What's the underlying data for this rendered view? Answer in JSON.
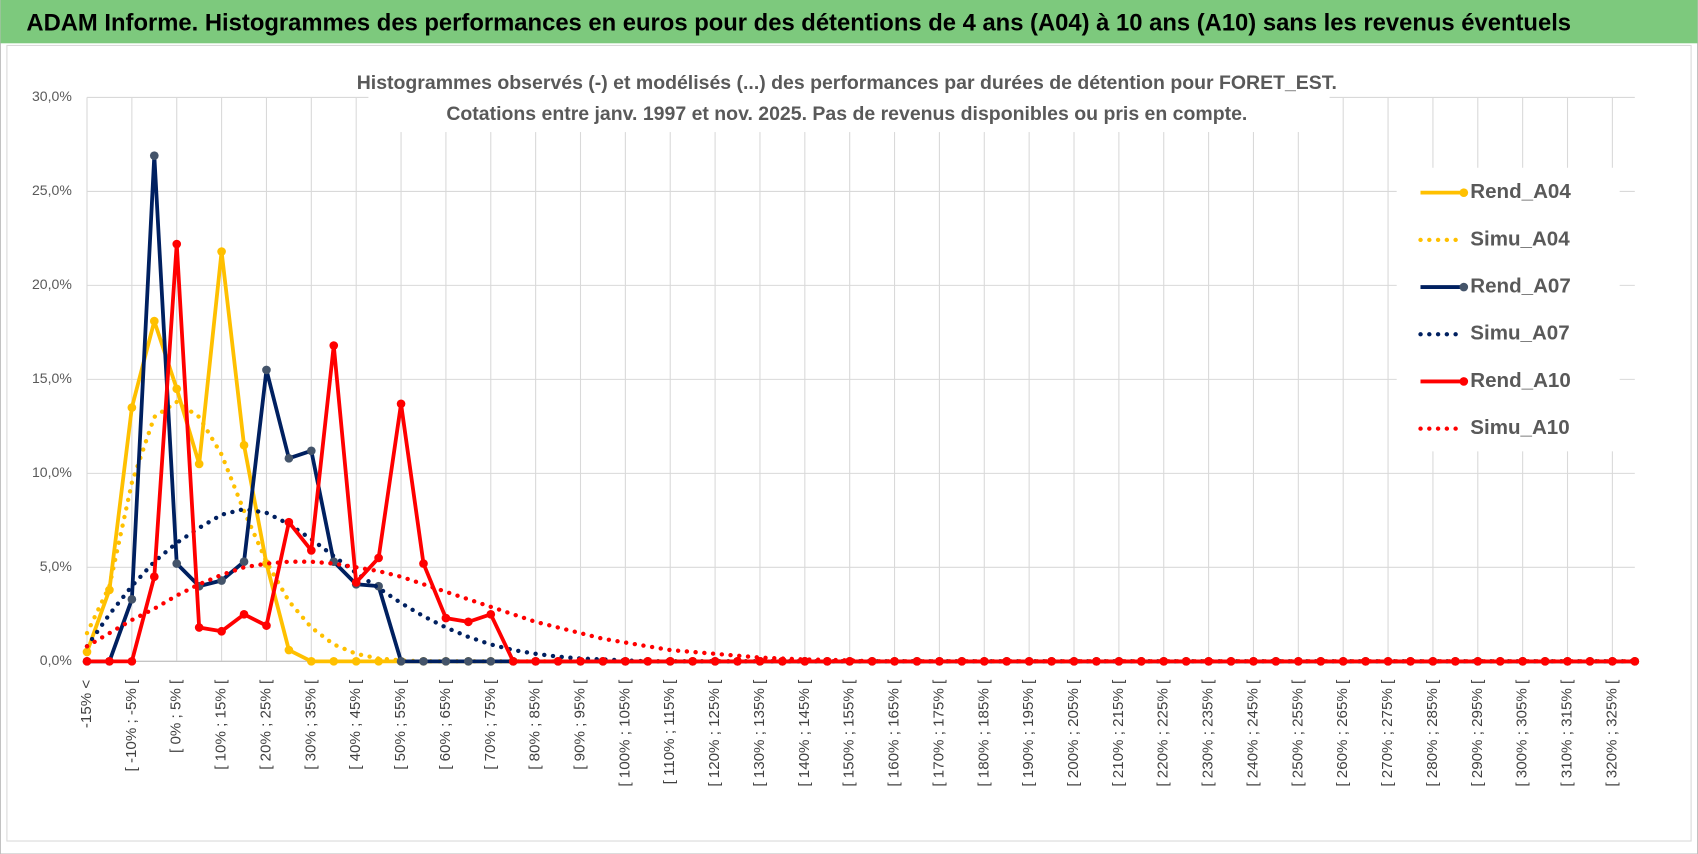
{
  "header": {
    "title": "ADAM Informe. Histogrammes des performances en euros pour des détentions de 4 ans (A04) à 10 ans (A10) sans les revenus éventuels"
  },
  "chart_data": {
    "type": "line",
    "title": "Histogrammes observés (-) et modélisés (...) des performances par durées de détention pour FORET_EST.",
    "subtitle": "Cotations entre janv. 1997 et nov. 2025. Pas de revenus disponibles ou pris en compte.",
    "categories": [
      "-15% <",
      null,
      "[ -10% ; -5% [",
      null,
      "[ 0% ; 5% [",
      null,
      "[ 10% ; 15% [",
      null,
      "[ 20% ; 25% [",
      null,
      "[ 30% ; 35% [",
      null,
      "[ 40% ; 45% [",
      null,
      "[ 50% ; 55% [",
      null,
      "[ 60% ; 65% [",
      null,
      "[ 70% ; 75% [",
      null,
      "[ 80% ; 85% [",
      null,
      "[ 90% ; 95% [",
      null,
      "[ 100% ; 105% [",
      null,
      "[ 110% ; 115% [",
      null,
      "[ 120% ; 125% [",
      null,
      "[ 130% ; 135% [",
      null,
      "[ 140% ; 145% [",
      null,
      "[ 150% ; 155% [",
      null,
      "[ 160% ; 165% [",
      null,
      "[ 170% ; 175% [",
      null,
      "[ 180% ; 185% [",
      null,
      "[ 190% ; 195% [",
      null,
      "[ 200% ; 205% [",
      null,
      "[ 210% ; 215% [",
      null,
      "[ 220% ; 225% [",
      null,
      "[ 230% ; 235% [",
      null,
      "[ 240% ; 245% [",
      null,
      "[ 250% ; 255% [",
      null,
      "[ 260% ; 265% [",
      null,
      "[ 270% ; 275% [",
      null,
      "[ 280% ; 285% [",
      null,
      "[ 290% ; 295% [",
      null,
      "[ 300% ; 305% [",
      null,
      "[ 310% ; 315% [",
      null,
      "[ 320% ; 325% [",
      null
    ],
    "series": [
      {
        "name": "Rend_A04",
        "color": "#FFC000",
        "line_style": "solid",
        "marker_color": "#FFC000",
        "values": [
          0.5,
          3.8,
          13.5,
          18.1,
          14.5,
          10.5,
          21.8,
          11.5,
          5.2,
          0.6,
          0,
          0,
          0,
          0,
          0,
          0,
          0,
          0,
          0,
          0,
          0,
          0,
          0,
          0,
          0,
          0,
          0,
          0,
          0,
          0,
          0,
          0,
          0,
          0,
          0,
          0,
          0,
          0,
          0,
          0,
          0,
          0,
          0,
          0,
          0,
          0,
          0,
          0,
          0,
          0,
          0,
          0,
          0,
          0,
          0,
          0,
          0,
          0,
          0,
          0,
          0,
          0,
          0,
          0,
          0,
          0,
          0,
          0,
          0,
          0
        ]
      },
      {
        "name": "Simu_A04",
        "color": "#FFC000",
        "line_style": "dotted",
        "values": [
          1.5,
          4,
          9.5,
          13,
          13.8,
          13,
          11,
          8,
          5.3,
          3.2,
          1.8,
          0.9,
          0.4,
          0.15,
          0.05,
          0,
          0,
          0,
          0,
          0,
          0,
          0,
          0,
          0,
          0,
          0,
          0,
          0,
          0,
          0,
          0,
          0,
          0,
          0,
          0,
          0,
          0,
          0,
          0,
          0,
          0,
          0,
          0,
          0,
          0,
          0,
          0,
          0,
          0,
          0,
          0,
          0,
          0,
          0,
          0,
          0,
          0,
          0,
          0,
          0,
          0,
          0,
          0,
          0,
          0,
          0,
          0,
          0,
          0,
          0
        ]
      },
      {
        "name": "Rend_A07",
        "color": "#002060",
        "line_style": "solid",
        "marker_color": "#44546A",
        "values": [
          0,
          0,
          3.3,
          26.9,
          5.2,
          4.0,
          4.3,
          5.3,
          15.5,
          10.8,
          11.2,
          5.3,
          4.1,
          4.0,
          0,
          0,
          0,
          0,
          0,
          0,
          0,
          0,
          0,
          0,
          0,
          0,
          0,
          0,
          0,
          0,
          0,
          0,
          0,
          0,
          0,
          0,
          0,
          0,
          0,
          0,
          0,
          0,
          0,
          0,
          0,
          0,
          0,
          0,
          0,
          0,
          0,
          0,
          0,
          0,
          0,
          0,
          0,
          0,
          0,
          0,
          0,
          0,
          0,
          0,
          0,
          0,
          0,
          0,
          0,
          0
        ]
      },
      {
        "name": "Simu_A07",
        "color": "#002060",
        "line_style": "dotted",
        "values": [
          0.8,
          2.5,
          4,
          5.3,
          6.3,
          7.1,
          7.8,
          8.1,
          7.9,
          7.3,
          6.5,
          5.6,
          4.7,
          3.9,
          3.1,
          2.4,
          1.8,
          1.3,
          0.9,
          0.6,
          0.4,
          0.25,
          0.15,
          0.1,
          0.05,
          0,
          0,
          0,
          0,
          0,
          0,
          0,
          0,
          0,
          0,
          0,
          0,
          0,
          0,
          0,
          0,
          0,
          0,
          0,
          0,
          0,
          0,
          0,
          0,
          0,
          0,
          0,
          0,
          0,
          0,
          0,
          0,
          0,
          0,
          0,
          0,
          0,
          0,
          0,
          0,
          0,
          0,
          0,
          0,
          0
        ]
      },
      {
        "name": "Rend_A10",
        "color": "#FF0000",
        "line_style": "solid",
        "marker_color": "#FF0000",
        "values": [
          0,
          0,
          0,
          4.5,
          22.2,
          1.8,
          1.6,
          2.5,
          1.9,
          7.4,
          5.9,
          16.8,
          4.2,
          5.5,
          13.7,
          5.2,
          2.3,
          2.1,
          2.5,
          0,
          0,
          0,
          0,
          0,
          0,
          0,
          0,
          0,
          0,
          0,
          0,
          0,
          0,
          0,
          0,
          0,
          0,
          0,
          0,
          0,
          0,
          0,
          0,
          0,
          0,
          0,
          0,
          0,
          0,
          0,
          0,
          0,
          0,
          0,
          0,
          0,
          0,
          0,
          0,
          0,
          0,
          0,
          0,
          0,
          0,
          0,
          0,
          0,
          0,
          0
        ]
      },
      {
        "name": "Simu_A10",
        "color": "#FF0000",
        "line_style": "dotted",
        "values": [
          0.8,
          1.5,
          2.2,
          2.8,
          3.5,
          4.1,
          4.6,
          5.0,
          5.2,
          5.3,
          5.3,
          5.2,
          5.0,
          4.8,
          4.5,
          4.1,
          3.7,
          3.3,
          2.9,
          2.5,
          2.1,
          1.8,
          1.5,
          1.2,
          1.0,
          0.8,
          0.6,
          0.5,
          0.4,
          0.3,
          0.2,
          0.15,
          0.1,
          0.08,
          0.05,
          0,
          0,
          0,
          0,
          0,
          0,
          0,
          0,
          0,
          0,
          0,
          0,
          0,
          0,
          0,
          0,
          0,
          0,
          0,
          0,
          0,
          0,
          0,
          0,
          0,
          0,
          0,
          0,
          0,
          0,
          0,
          0,
          0,
          0,
          0
        ]
      }
    ],
    "ylim": [
      0,
      30
    ],
    "yticks": [
      {
        "value": 0,
        "label": "0,0%"
      },
      {
        "value": 5,
        "label": "5,0%"
      },
      {
        "value": 10,
        "label": "10,0%"
      },
      {
        "value": 15,
        "label": "15,0%"
      },
      {
        "value": 20,
        "label": "20,0%"
      },
      {
        "value": 25,
        "label": "25,0%"
      },
      {
        "value": 30,
        "label": "30,0%"
      }
    ],
    "grid": true,
    "legend": "right"
  }
}
